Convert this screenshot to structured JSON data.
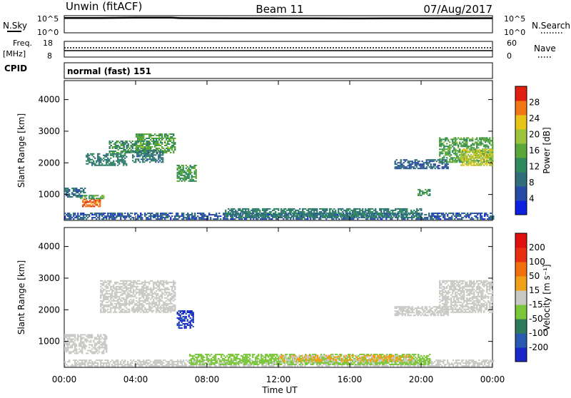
{
  "header": {
    "station": "Unwin (fitACF)",
    "beam": "Beam 11",
    "date": "07/Aug/2017"
  },
  "noise_panel": {
    "left_label": "N.Sky",
    "right_label": "N.Search",
    "ticks_left": [
      "10^5",
      "10^0"
    ],
    "ticks_right": [
      "10^5",
      "10^0"
    ]
  },
  "freq_panel": {
    "left_label_1": "Freq.",
    "left_label_2": "[MHz]",
    "right_label": "Nave",
    "ticks_left": [
      "18",
      "8"
    ],
    "ticks_right": [
      "60",
      "0"
    ]
  },
  "cpid_panel": {
    "label": "CPID",
    "value": "normal (fast) 151"
  },
  "x_axis": {
    "label": "Time UT",
    "ticks": [
      "00:00",
      "04:00",
      "08:00",
      "12:00",
      "16:00",
      "20:00",
      "00:00"
    ]
  },
  "power_panel": {
    "ylabel": "Slant Range [km]",
    "yticks": [
      "4000",
      "3000",
      "2000",
      "1000"
    ],
    "colorbar_label": "Power [dB]",
    "colorbar_ticks": [
      "28",
      "24",
      "20",
      "16",
      "12",
      "8",
      "4"
    ],
    "colors": [
      "#1020e0",
      "#2a4aa8",
      "#2f6e7a",
      "#2f8a5e",
      "#5aa83a",
      "#9cc43a",
      "#e8c41a",
      "#f07818",
      "#e02010"
    ]
  },
  "velocity_panel": {
    "ylabel": "Slant Range [km]",
    "yticks": [
      "4000",
      "3000",
      "2000",
      "1000"
    ],
    "colorbar_label": "Velocity [m s⁻¹]",
    "colorbar_ticks": [
      "200",
      "100",
      "50",
      "15",
      "-15",
      "-50",
      "-100",
      "-200"
    ],
    "colors": [
      "#1a28c8",
      "#2a5ab0",
      "#2e7a5a",
      "#7ac83a",
      "#c8c8c4",
      "#f0a018",
      "#f07010",
      "#e83010",
      "#e01010"
    ]
  },
  "chart_data": [
    {
      "type": "line",
      "title": "",
      "xlabel": "",
      "ylabel": "N.Sky",
      "x_range": [
        "00:00",
        "24:00"
      ],
      "ylim": [
        1,
        100000
      ],
      "log_scale": true,
      "series": [
        {
          "name": "N.Sky",
          "x_hours": [
            0,
            2,
            4,
            6,
            6.5,
            8,
            10,
            12,
            14,
            16,
            18,
            20,
            22,
            24
          ],
          "values": [
            30000,
            32000,
            40000,
            40000,
            28000,
            27000,
            25000,
            24000,
            23000,
            22000,
            23000,
            24000,
            25000,
            27000
          ]
        },
        {
          "name": "N.Search",
          "x_hours": [
            0,
            24
          ],
          "values": [
            1,
            1
          ]
        }
      ]
    },
    {
      "type": "line",
      "title": "",
      "xlabel": "",
      "ylabel": "Freq. [MHz]",
      "x_range": [
        "00:00",
        "24:00"
      ],
      "ylim": [
        8,
        18
      ],
      "y2lim": [
        0,
        60
      ],
      "series": [
        {
          "name": "Freq.",
          "x_hours": [
            0,
            24
          ],
          "values": [
            10.3,
            10.3
          ]
        },
        {
          "name": "Nave",
          "x_hours": [
            0,
            24
          ],
          "values": [
            22,
            22
          ]
        }
      ]
    },
    {
      "type": "heatmap",
      "title": "Power [dB]",
      "xlabel": "Time UT",
      "ylabel": "Slant Range [km]",
      "x_range_hours": [
        0,
        24
      ],
      "ylim_km": [
        180,
        4600
      ],
      "color_range": [
        0,
        30
      ],
      "regions": [
        {
          "t0": 0.0,
          "t1": 1.2,
          "r0": 900,
          "r1": 1200,
          "value": 8
        },
        {
          "t0": 1.0,
          "t1": 2.0,
          "r0": 600,
          "r1": 850,
          "value": 26
        },
        {
          "t0": 0.8,
          "t1": 2.2,
          "r0": 850,
          "r1": 950,
          "value": 14
        },
        {
          "t0": 1.2,
          "t1": 3.5,
          "r0": 1900,
          "r1": 2300,
          "value": 10
        },
        {
          "t0": 2.5,
          "t1": 4.8,
          "r0": 2300,
          "r1": 2700,
          "value": 12
        },
        {
          "t0": 4.0,
          "t1": 6.2,
          "r0": 2300,
          "r1": 2900,
          "value": 14
        },
        {
          "t0": 3.8,
          "t1": 5.5,
          "r0": 2000,
          "r1": 2400,
          "value": 9
        },
        {
          "t0": 6.3,
          "t1": 7.4,
          "r0": 1400,
          "r1": 1900,
          "value": 13
        },
        {
          "t0": 0.0,
          "t1": 24.0,
          "r0": 200,
          "r1": 420,
          "value": 6
        },
        {
          "t0": 9.0,
          "t1": 20.0,
          "r0": 250,
          "r1": 550,
          "value": 10
        },
        {
          "t0": 18.5,
          "t1": 21.5,
          "r0": 1800,
          "r1": 2100,
          "value": 7
        },
        {
          "t0": 19.8,
          "t1": 20.5,
          "r0": 950,
          "r1": 1150,
          "value": 12
        },
        {
          "t0": 21.0,
          "t1": 24.0,
          "r0": 2000,
          "r1": 2800,
          "value": 14
        },
        {
          "t0": 22.2,
          "t1": 24.0,
          "r0": 1900,
          "r1": 2400,
          "value": 20
        }
      ]
    },
    {
      "type": "heatmap",
      "title": "Velocity [m s⁻¹]",
      "xlabel": "Time UT",
      "ylabel": "Slant Range [km]",
      "x_range_hours": [
        0,
        24
      ],
      "ylim_km": [
        180,
        4600
      ],
      "color_range": [
        -250,
        250
      ],
      "regions": [
        {
          "t0": 0.0,
          "t1": 2.4,
          "r0": 600,
          "r1": 1200,
          "value": 0
        },
        {
          "t0": 2.0,
          "t1": 6.2,
          "r0": 1900,
          "r1": 2900,
          "value": 0
        },
        {
          "t0": 6.3,
          "t1": 7.2,
          "r0": 1400,
          "r1": 1950,
          "value": -200
        },
        {
          "t0": 0.0,
          "t1": 24.0,
          "r0": 200,
          "r1": 400,
          "value": 0
        },
        {
          "t0": 7.0,
          "t1": 20.5,
          "r0": 250,
          "r1": 600,
          "value": -50
        },
        {
          "t0": 12.0,
          "t1": 19.5,
          "r0": 350,
          "r1": 550,
          "value": 30
        },
        {
          "t0": 18.5,
          "t1": 21.5,
          "r0": 1800,
          "r1": 2100,
          "value": 0
        },
        {
          "t0": 21.0,
          "t1": 24.0,
          "r0": 1900,
          "r1": 2900,
          "value": 0
        }
      ]
    }
  ]
}
